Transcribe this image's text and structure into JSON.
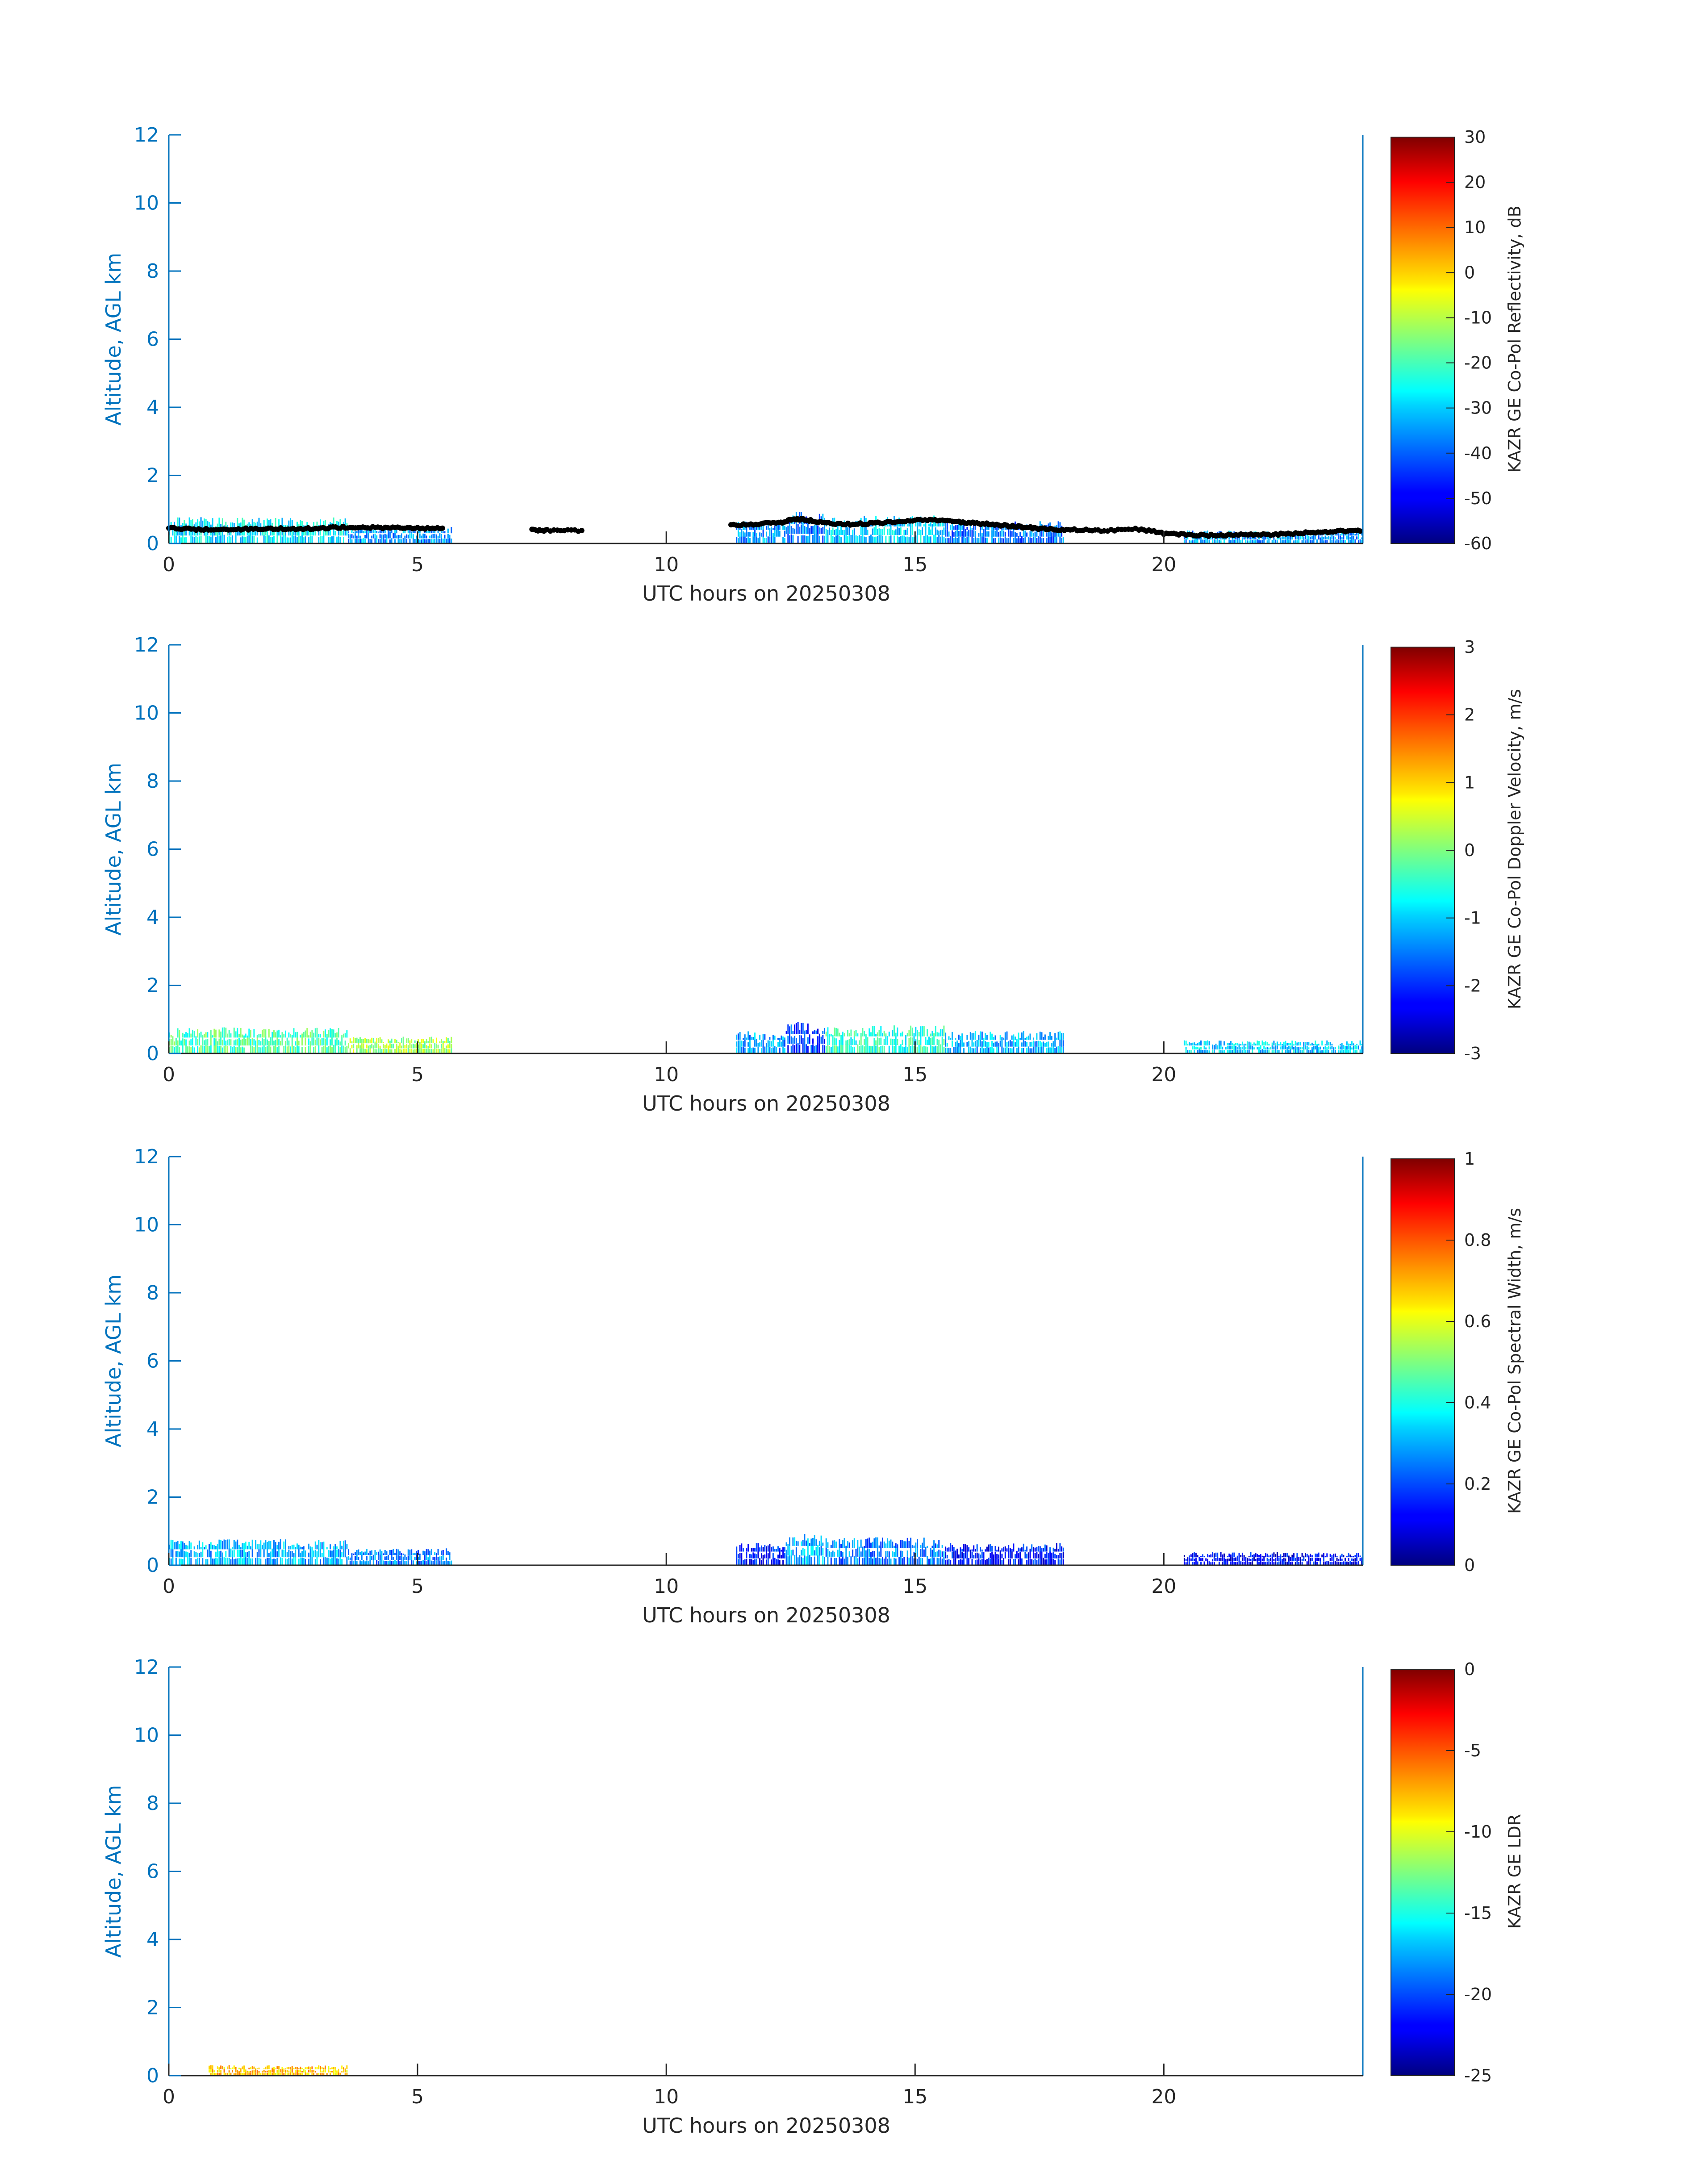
{
  "chart_data": [
    {
      "type": "heatmap",
      "title": "",
      "xlabel": "UTC hours on 20250308",
      "ylabel": "Altitude, AGL km",
      "xlim": [
        0,
        24
      ],
      "ylim": [
        0,
        12
      ],
      "xticks": [
        0,
        5,
        10,
        15,
        20
      ],
      "yticks": [
        0,
        2,
        4,
        6,
        8,
        10,
        12
      ],
      "colorbar": {
        "label": "KAZR GE Co-Pol Reflectivity, dB",
        "range": [
          -60,
          30
        ],
        "ticks": [
          30,
          20,
          10,
          0,
          -10,
          -20,
          -30,
          -40,
          -50,
          -60
        ],
        "colormap": "jet"
      },
      "echo_bands": [
        {
          "x0": 0.0,
          "x1": 3.6,
          "top": 0.7,
          "z": -28
        },
        {
          "x0": 3.6,
          "x1": 5.7,
          "top": 0.45,
          "z": -35
        },
        {
          "x0": 11.4,
          "x1": 12.4,
          "top": 0.6,
          "z": -35
        },
        {
          "x0": 12.4,
          "x1": 13.2,
          "top": 0.85,
          "z": -38
        },
        {
          "x0": 13.2,
          "x1": 15.6,
          "top": 0.75,
          "z": -30
        },
        {
          "x0": 15.6,
          "x1": 18.0,
          "top": 0.6,
          "z": -38
        },
        {
          "x0": 20.4,
          "x1": 24.0,
          "top": 0.35,
          "z": -35
        }
      ],
      "cloud_base_km": [
        [
          0.0,
          0.45
        ],
        [
          0.5,
          0.42
        ],
        [
          1.0,
          0.4
        ],
        [
          1.5,
          0.42
        ],
        [
          2.0,
          0.45
        ],
        [
          2.5,
          0.42
        ],
        [
          3.0,
          0.45
        ],
        [
          3.5,
          0.48
        ],
        [
          4.0,
          0.47
        ],
        [
          4.5,
          0.46
        ],
        [
          5.0,
          0.45
        ],
        [
          5.5,
          0.45
        ],
        [
          7.3,
          0.4
        ],
        [
          7.6,
          0.38
        ],
        [
          8.3,
          0.38
        ],
        [
          11.3,
          0.55
        ],
        [
          11.8,
          0.56
        ],
        [
          12.3,
          0.62
        ],
        [
          12.6,
          0.72
        ],
        [
          12.9,
          0.68
        ],
        [
          13.3,
          0.58
        ],
        [
          13.8,
          0.57
        ],
        [
          14.3,
          0.6
        ],
        [
          14.8,
          0.66
        ],
        [
          15.3,
          0.7
        ],
        [
          15.8,
          0.65
        ],
        [
          16.2,
          0.6
        ],
        [
          16.6,
          0.55
        ],
        [
          17.0,
          0.5
        ],
        [
          17.4,
          0.45
        ],
        [
          17.8,
          0.4
        ],
        [
          18.2,
          0.4
        ],
        [
          18.8,
          0.38
        ],
        [
          19.5,
          0.42
        ],
        [
          20.0,
          0.3
        ],
        [
          20.5,
          0.25
        ],
        [
          21.0,
          0.24
        ],
        [
          21.5,
          0.25
        ],
        [
          22.0,
          0.26
        ],
        [
          22.5,
          0.28
        ],
        [
          23.0,
          0.32
        ],
        [
          23.5,
          0.36
        ],
        [
          24.0,
          0.38
        ]
      ]
    },
    {
      "type": "heatmap",
      "title": "",
      "xlabel": "UTC hours on 20250308",
      "ylabel": "Altitude, AGL km",
      "xlim": [
        0,
        24
      ],
      "ylim": [
        0,
        12
      ],
      "xticks": [
        0,
        5,
        10,
        15,
        20
      ],
      "yticks": [
        0,
        2,
        4,
        6,
        8,
        10,
        12
      ],
      "colorbar": {
        "label": "KAZR GE Co-Pol Doppler Velocity, m/s",
        "range": [
          -3,
          3
        ],
        "ticks": [
          3,
          2,
          1,
          0,
          -1,
          -2,
          -3
        ],
        "colormap": "jet"
      },
      "echo_bands": [
        {
          "x0": 0.0,
          "x1": 3.6,
          "top": 0.7,
          "z": -0.3
        },
        {
          "x0": 3.6,
          "x1": 5.7,
          "top": 0.45,
          "z": 0.2
        },
        {
          "x0": 11.4,
          "x1": 12.4,
          "top": 0.6,
          "z": -1.3
        },
        {
          "x0": 12.4,
          "x1": 13.2,
          "top": 0.85,
          "z": -1.9
        },
        {
          "x0": 13.2,
          "x1": 15.6,
          "top": 0.75,
          "z": -0.5
        },
        {
          "x0": 15.6,
          "x1": 18.0,
          "top": 0.6,
          "z": -1.2
        },
        {
          "x0": 20.4,
          "x1": 24.0,
          "top": 0.35,
          "z": -1.0
        }
      ]
    },
    {
      "type": "heatmap",
      "title": "",
      "xlabel": "UTC hours on 20250308",
      "ylabel": "Altitude, AGL km",
      "xlim": [
        0,
        24
      ],
      "ylim": [
        0,
        12
      ],
      "xticks": [
        0,
        5,
        10,
        15,
        20
      ],
      "yticks": [
        0,
        2,
        4,
        6,
        8,
        10,
        12
      ],
      "colorbar": {
        "label": "KAZR GE Co-Pol Spectral Width, m/s",
        "range": [
          0,
          1
        ],
        "ticks": [
          1,
          0.8,
          0.6,
          0.4,
          0.2,
          0
        ],
        "colormap": "jet"
      },
      "echo_bands": [
        {
          "x0": 0.0,
          "x1": 3.6,
          "top": 0.7,
          "z": 0.3
        },
        {
          "x0": 3.6,
          "x1": 5.7,
          "top": 0.45,
          "z": 0.25
        },
        {
          "x0": 11.4,
          "x1": 12.4,
          "top": 0.6,
          "z": 0.15
        },
        {
          "x0": 12.4,
          "x1": 13.2,
          "top": 0.85,
          "z": 0.3
        },
        {
          "x0": 13.2,
          "x1": 15.6,
          "top": 0.75,
          "z": 0.25
        },
        {
          "x0": 15.6,
          "x1": 18.0,
          "top": 0.6,
          "z": 0.15
        },
        {
          "x0": 20.4,
          "x1": 24.0,
          "top": 0.35,
          "z": 0.12
        }
      ]
    },
    {
      "type": "heatmap",
      "title": "",
      "xlabel": "UTC hours on 20250308",
      "ylabel": "Altitude, AGL km",
      "xlim": [
        0,
        24
      ],
      "ylim": [
        0,
        12
      ],
      "xticks": [
        0,
        5,
        10,
        15,
        20
      ],
      "yticks": [
        0,
        2,
        4,
        6,
        8,
        10,
        12
      ],
      "colorbar": {
        "label": "KAZR GE LDR",
        "range": [
          -25,
          0
        ],
        "ticks": [
          0,
          -5,
          -10,
          -15,
          -20,
          -25
        ],
        "colormap": "jet"
      },
      "echo_bands": [
        {
          "x0": 0.8,
          "x1": 3.6,
          "top": 0.28,
          "z": -8
        }
      ]
    }
  ]
}
